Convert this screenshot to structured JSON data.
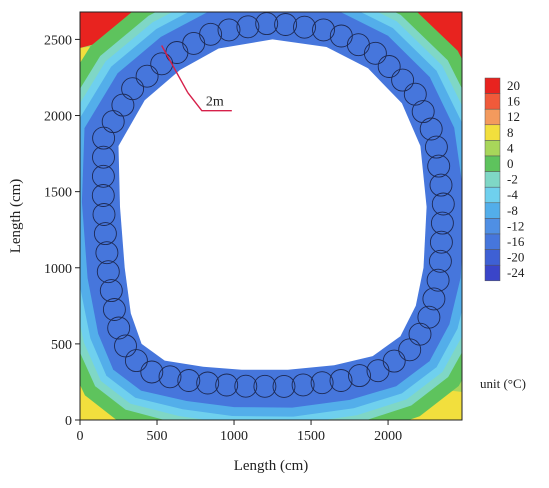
{
  "chart_data": {
    "type": "heatmap",
    "xlabel": "Length (cm)",
    "ylabel": "Length (cm)",
    "xlim": [
      0,
      2480
    ],
    "ylim": [
      0,
      2680
    ],
    "x_ticks": [
      "0",
      "500",
      "1000",
      "1500",
      "2000"
    ],
    "y_ticks": [
      "0",
      "500",
      "1000",
      "1500",
      "2000",
      "2500"
    ],
    "grid": false,
    "annotation": {
      "text": "2m",
      "arrow_from": [
        530,
        2460
      ],
      "arrow_to": [
        700,
        2150
      ]
    },
    "legend_placement": "right",
    "legend_levels": [
      "20",
      "16",
      "12",
      "8",
      "4",
      "0",
      "-2",
      "-4",
      "-8",
      "-12",
      "-16",
      "-20",
      "-24"
    ],
    "legend_colors": [
      "#e8231f",
      "#f05a3a",
      "#f39a5d",
      "#f2df3d",
      "#a8d65a",
      "#5ec35d",
      "#7fd7c6",
      "#6fd0ee",
      "#53aeea",
      "#4f8fe4",
      "#4676dc",
      "#3e60d4",
      "#3a45c9"
    ],
    "unit_label": "unit (°C)",
    "opening_boundary": [
      [
        250,
        1800
      ],
      [
        260,
        1400
      ],
      [
        290,
        1000
      ],
      [
        330,
        700
      ],
      [
        400,
        500
      ],
      [
        550,
        390
      ],
      [
        800,
        350
      ],
      [
        1050,
        330
      ],
      [
        1350,
        330
      ],
      [
        1650,
        360
      ],
      [
        1900,
        420
      ],
      [
        2080,
        550
      ],
      [
        2180,
        750
      ],
      [
        2230,
        1000
      ],
      [
        2250,
        1400
      ],
      [
        2210,
        1800
      ],
      [
        2090,
        2080
      ],
      [
        1870,
        2310
      ],
      [
        1600,
        2450
      ],
      [
        1250,
        2500
      ],
      [
        900,
        2440
      ],
      [
        650,
        2300
      ],
      [
        420,
        2100
      ]
    ],
    "band_width_cm": 200,
    "freezing_pipe_rows": 2
  }
}
